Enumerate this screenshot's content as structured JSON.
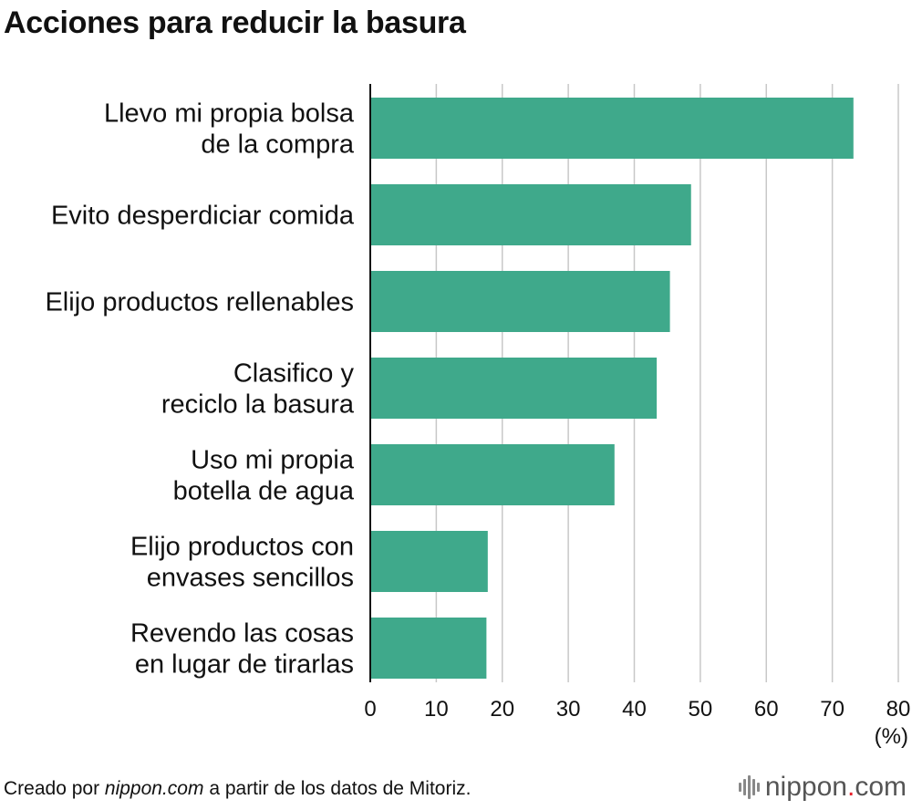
{
  "header": {
    "title": "Acciones para reducir la basura"
  },
  "chart_data": {
    "type": "bar",
    "orientation": "horizontal",
    "title": "Acciones para reducir la basura",
    "categories": [
      [
        "Llevo mi propia bolsa",
        "de la compra"
      ],
      [
        "Evito desperdiciar comida"
      ],
      [
        "Elijo productos rellenables"
      ],
      [
        "Clasifico y",
        "reciclo la basura"
      ],
      [
        "Uso mi propia",
        "botella de agua"
      ],
      [
        "Elijo productos con",
        "envases sencillos"
      ],
      [
        "Revendo las cosas",
        "en lugar de tirarlas"
      ]
    ],
    "values": [
      73.2,
      48.6,
      45.4,
      43.4,
      37.0,
      17.8,
      17.6
    ],
    "xlim": [
      0,
      80
    ],
    "xticks": [
      "0",
      "10",
      "20",
      "30",
      "40",
      "50",
      "60",
      "70",
      "80"
    ],
    "xlabel": "(%)",
    "ylabel": "",
    "grid": true,
    "bar_color": "#3fa98b",
    "grid_color": "#c8c8c8"
  },
  "footer": {
    "source_prefix": "Creado por ",
    "source_site": "nippon.com",
    "source_suffix": " a partir de los datos de Mitoriz.",
    "logo_name": "nippon",
    "logo_dot": ".",
    "logo_tld": "com",
    "logo_icon": "sound-bars-icon"
  }
}
